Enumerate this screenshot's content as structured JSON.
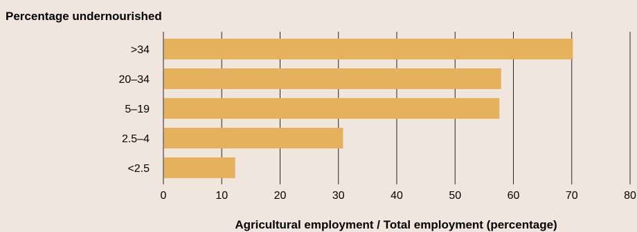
{
  "chart_data": {
    "type": "bar",
    "orientation": "horizontal",
    "title": "",
    "ylabel": "Percentage undernourished",
    "xlabel": "Agricultural employment / Total employment (percentage)",
    "categories": [
      ">34",
      "20–34",
      "5–19",
      "2.5–4",
      "<2.5"
    ],
    "values": [
      70.2,
      57.9,
      57.6,
      30.8,
      12.3
    ],
    "xlim": [
      0,
      80
    ],
    "xticks": [
      0,
      10,
      20,
      30,
      40,
      50,
      60,
      70,
      80
    ],
    "grid": true,
    "bar_color": "#e5b15c",
    "background": "#f1e6dd"
  }
}
